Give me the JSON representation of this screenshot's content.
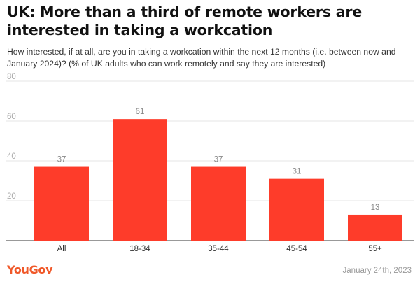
{
  "title": "UK: More than a third of remote workers are interested in taking a workcation",
  "subtitle": "How interested, if at all, are you in taking a workcation within the next 12 months (i.e. between now and January 2024)? (% of UK adults who can work remotely and say they are interested)",
  "chart_data": {
    "type": "bar",
    "categories": [
      "All",
      "18-34",
      "35-44",
      "45-54",
      "55+"
    ],
    "values": [
      37,
      61,
      37,
      31,
      13
    ],
    "ylim": [
      0,
      80
    ],
    "yticks": [
      20,
      40,
      60,
      80
    ],
    "grid": true,
    "bar_color": "#fe3c2a",
    "xlabel": "",
    "ylabel": ""
  },
  "footer": {
    "brand": "YouGov",
    "date": "January 24th, 2023"
  },
  "colors": {
    "brand": "#f0592a",
    "grid": "#e6e6e6",
    "axis_text": "#aaaaaa"
  }
}
